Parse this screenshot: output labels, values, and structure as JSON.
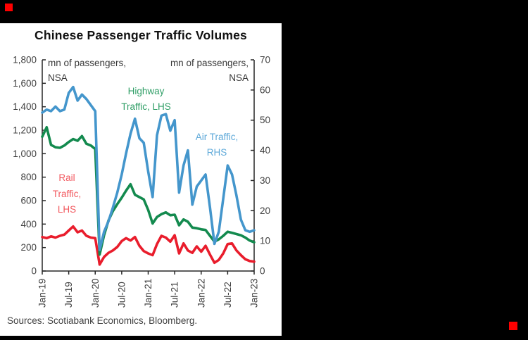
{
  "title": "Chinese Passenger Traffic Volumes",
  "source_note": "Sources: Scotiabank Economics, Bloomberg.",
  "annotations": {
    "lhs_unit_line1": "mn of passengers,",
    "lhs_unit_line2": "NSA",
    "rhs_unit_line1": "mn of passengers,",
    "rhs_unit_line2": "NSA",
    "highway_label_line1": "Highway",
    "highway_label_line2": "Traffic, LHS",
    "air_label_line1": "Air Traffic,",
    "air_label_line2": "RHS",
    "rail_label_line1": "Rail",
    "rail_label_line2": "Traffic,",
    "rail_label_line3": "LHS"
  },
  "colors": {
    "background": "#000000",
    "card": "#ffffff",
    "axis_line": "#262626",
    "axis_text": "#3f3f3f",
    "rail_line": "#e91d2c",
    "rail_label": "#f2595f",
    "highway_line": "#138a4e",
    "highway_label": "#2f9e66",
    "air_line": "#4496cc",
    "air_label": "#5ea9d9",
    "corner_marker": "#fe0000"
  },
  "chart_data": {
    "type": "line",
    "title": "Chinese Passenger Traffic Volumes",
    "frequency": "monthly",
    "x_start": "Jan-19",
    "x_end": "Jan-23",
    "x_tick_labels": [
      "Jan-19",
      "Jul-19",
      "Jan-20",
      "Jul-20",
      "Jan-21",
      "Jul-21",
      "Jan-22",
      "Jul-22",
      "Jan-23"
    ],
    "x_tick_every_n_points": 6,
    "grid": false,
    "lhs_axis": {
      "label": "mn of passengers, NSA",
      "min": 0,
      "max": 1800,
      "step": 200
    },
    "rhs_axis": {
      "label": "mn of passengers, NSA",
      "min": 0,
      "max": 70,
      "step": 10
    },
    "series": [
      {
        "name": "Rail Traffic, LHS",
        "axis": "LHS",
        "color": "#e91d2c",
        "values": [
          290,
          280,
          295,
          285,
          300,
          310,
          345,
          380,
          330,
          345,
          300,
          285,
          280,
          55,
          120,
          155,
          175,
          205,
          255,
          280,
          260,
          290,
          215,
          170,
          150,
          135,
          230,
          300,
          285,
          250,
          305,
          150,
          235,
          175,
          155,
          210,
          165,
          215,
          140,
          70,
          95,
          150,
          230,
          235,
          175,
          135,
          100,
          85,
          80
        ]
      },
      {
        "name": "Highway Traffic, LHS",
        "axis": "LHS",
        "color": "#138a4e",
        "values": [
          1145,
          1225,
          1075,
          1055,
          1050,
          1070,
          1100,
          1125,
          1110,
          1150,
          1085,
          1070,
          1040,
          140,
          305,
          430,
          510,
          570,
          625,
          685,
          740,
          650,
          630,
          610,
          520,
          405,
          460,
          485,
          500,
          475,
          480,
          390,
          440,
          420,
          370,
          365,
          355,
          350,
          300,
          250,
          270,
          300,
          335,
          325,
          315,
          305,
          285,
          260,
          245
        ]
      },
      {
        "name": "Air Traffic, RHS",
        "axis": "RHS",
        "color": "#4496cc",
        "values": [
          52.5,
          53.5,
          53,
          54.5,
          53,
          53.5,
          59,
          61,
          56.5,
          58.5,
          57,
          55,
          53,
          7,
          13,
          16.5,
          21,
          26,
          32,
          39,
          45.5,
          50.5,
          44,
          42.5,
          33,
          24.5,
          45,
          51.5,
          52,
          46.5,
          50,
          26,
          35,
          40,
          22,
          28,
          30,
          32,
          21,
          9,
          13,
          24,
          35,
          32,
          25,
          17,
          13.5,
          13,
          13.5
        ]
      }
    ]
  }
}
